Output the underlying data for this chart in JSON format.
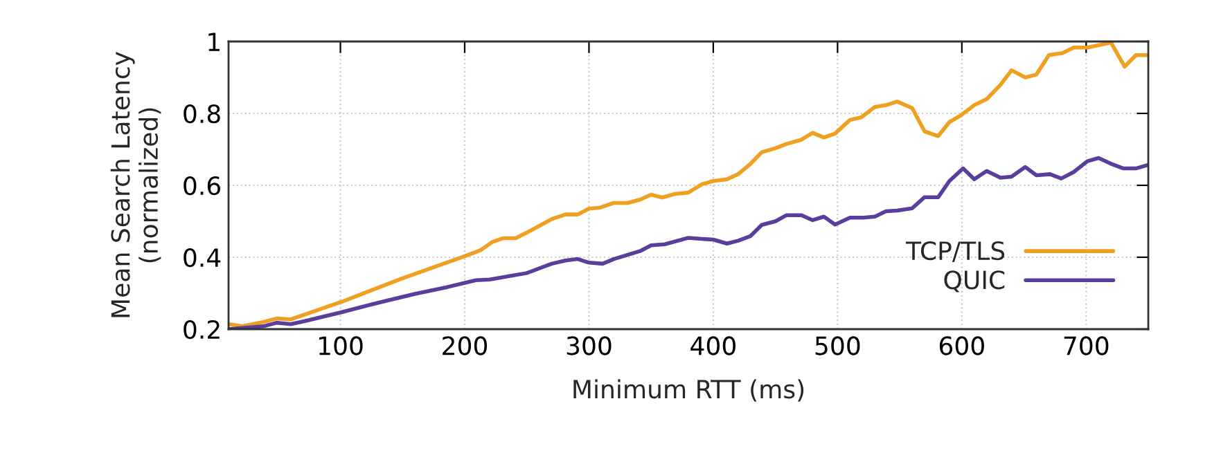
{
  "chart_data": {
    "type": "line",
    "xlabel": "Minimum RTT (ms)",
    "ylabel": "Mean Search Latency\n(normalized)",
    "xlim": [
      10,
      750
    ],
    "xticks": [
      100,
      200,
      300,
      400,
      500,
      600,
      700
    ],
    "ylim": [
      0.2,
      1
    ],
    "yticks": [
      0.2,
      0.4,
      0.6,
      0.8,
      1
    ],
    "grid": true,
    "legend": "bottom right",
    "line_style": "solid",
    "marker": "none",
    "series": [
      {
        "name": "TCP/TLS",
        "color": "#f0a020",
        "x": [
          10,
          21,
          38,
          49,
          60,
          101,
          149,
          201,
          213,
          222,
          231,
          241,
          253,
          270,
          281,
          291,
          300,
          309,
          320,
          331,
          341,
          350,
          359,
          369,
          380,
          391,
          400,
          411,
          420,
          430,
          439,
          450,
          459,
          471,
          480,
          489,
          498,
          510,
          519,
          530,
          539,
          548,
          560,
          570,
          581,
          590,
          599,
          610,
          620,
          631,
          640,
          651,
          660,
          670,
          681,
          690,
          701,
          720,
          731,
          740,
          750
        ],
        "values": [
          0.214,
          0.208,
          0.22,
          0.23,
          0.227,
          0.276,
          0.34,
          0.404,
          0.42,
          0.442,
          0.453,
          0.453,
          0.474,
          0.506,
          0.519,
          0.519,
          0.535,
          0.538,
          0.551,
          0.551,
          0.56,
          0.574,
          0.566,
          0.576,
          0.58,
          0.603,
          0.612,
          0.617,
          0.631,
          0.66,
          0.692,
          0.703,
          0.715,
          0.727,
          0.746,
          0.733,
          0.744,
          0.782,
          0.789,
          0.818,
          0.823,
          0.833,
          0.815,
          0.75,
          0.737,
          0.776,
          0.794,
          0.823,
          0.84,
          0.879,
          0.92,
          0.9,
          0.908,
          0.962,
          0.968,
          0.983,
          0.983,
          0.997,
          0.93,
          0.962,
          0.962
        ]
      },
      {
        "name": "QUIC",
        "color": "#5a3e9b",
        "x": [
          10,
          38,
          49,
          60,
          71,
          101,
          130,
          160,
          186,
          209,
          220,
          250,
          270,
          281,
          291,
          300,
          311,
          320,
          341,
          350,
          361,
          380,
          391,
          400,
          411,
          420,
          430,
          439,
          450,
          459,
          471,
          480,
          489,
          498,
          510,
          521,
          530,
          539,
          548,
          560,
          570,
          581,
          590,
          601,
          610,
          620,
          631,
          640,
          651,
          660,
          671,
          680,
          690,
          701,
          710,
          720,
          730,
          740,
          750
        ],
        "values": [
          0.2,
          0.208,
          0.218,
          0.214,
          0.222,
          0.247,
          0.273,
          0.298,
          0.317,
          0.336,
          0.338,
          0.356,
          0.382,
          0.391,
          0.395,
          0.385,
          0.382,
          0.395,
          0.417,
          0.433,
          0.436,
          0.454,
          0.451,
          0.449,
          0.438,
          0.446,
          0.459,
          0.49,
          0.5,
          0.517,
          0.517,
          0.503,
          0.513,
          0.491,
          0.51,
          0.51,
          0.513,
          0.528,
          0.53,
          0.536,
          0.567,
          0.567,
          0.612,
          0.647,
          0.617,
          0.64,
          0.621,
          0.624,
          0.651,
          0.628,
          0.631,
          0.619,
          0.637,
          0.667,
          0.676,
          0.66,
          0.647,
          0.647,
          0.657
        ]
      }
    ]
  }
}
